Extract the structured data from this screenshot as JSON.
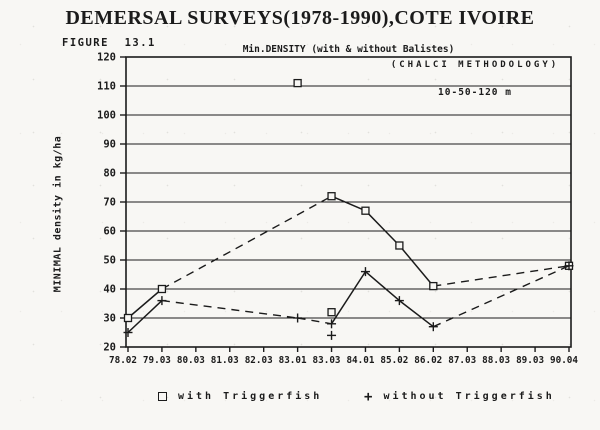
{
  "figure_label": "FIGURE  13.1",
  "legend": {
    "plus_glyph": "+"
  },
  "chart_data": {
    "type": "line",
    "title": "DEMERSAL SURVEYS(1978-1990),COTE IVOIRE",
    "subtitle": "Min.DENSITY (with & without Balistes)",
    "annotations": [
      "(CHALCI METHODOLOGY)",
      "10-50-120 m"
    ],
    "ylabel": "MINIMAL density in kg/ha",
    "xlabel": "",
    "ylim": [
      20,
      120
    ],
    "yticks": [
      20,
      30,
      40,
      50,
      60,
      70,
      80,
      90,
      100,
      110,
      120
    ],
    "grid": "horizontal",
    "legend_position": "bottom",
    "ink_color": "#1b1b1b",
    "paper_color": "#f8f7f4",
    "categories": [
      "78.02",
      "79.03",
      "80.03",
      "81.03",
      "82.03",
      "83.01",
      "83.03",
      "84.01",
      "85.02",
      "86.02",
      "87.03",
      "88.03",
      "89.03",
      "90.04"
    ],
    "series": [
      {
        "name": "with Triggerfish",
        "symbol": "square",
        "values": [
          30,
          40,
          null,
          null,
          null,
          null,
          72,
          67,
          55,
          41,
          null,
          null,
          null,
          48
        ],
        "solid_ranges": [
          [
            0,
            1
          ],
          [
            6,
            9
          ]
        ],
        "isolated_points": [
          {
            "category": "83.01",
            "value": 111
          }
        ],
        "extra_markers": [
          {
            "category": "83.03",
            "value": 32
          }
        ]
      },
      {
        "name": "without Triggerfish",
        "symbol": "plus",
        "values": [
          25,
          36,
          null,
          null,
          null,
          30,
          28,
          46,
          36,
          27,
          null,
          null,
          null,
          48
        ],
        "solid_ranges": [
          [
            0,
            1
          ],
          [
            6,
            9
          ]
        ],
        "isolated_points": [],
        "extra_markers": [
          {
            "category": "83.03",
            "value": 24
          }
        ]
      }
    ]
  }
}
